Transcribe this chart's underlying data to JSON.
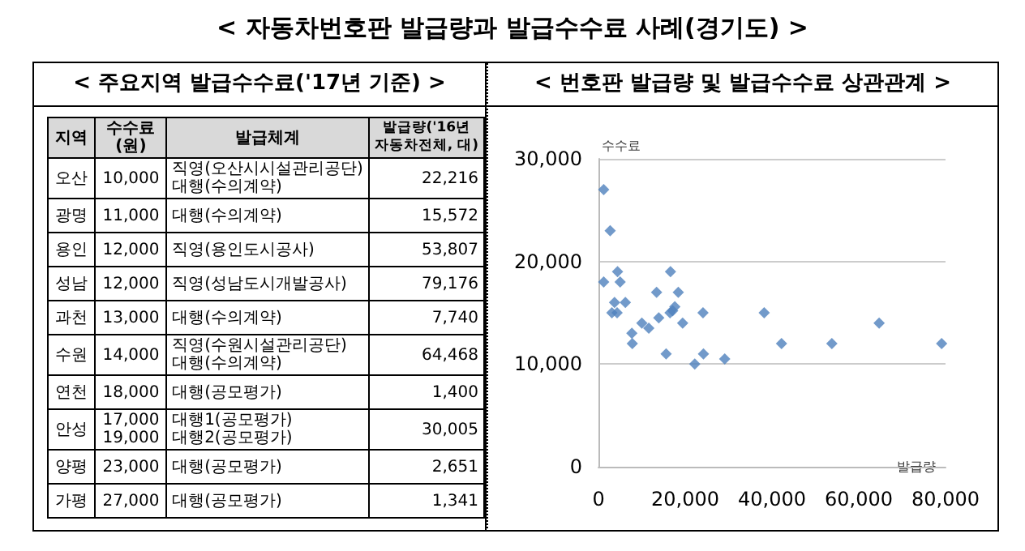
{
  "chart_data": [
    {
      "type": "other",
      "title": "< 자동차번호판 발급량과 발급수수료 사례(경기도) >",
      "subtitle": "< 주요지역 발급수수료('17년 기준) >",
      "annotations": [
        "지역",
        "수수료\n(원)",
        "발급체계",
        "발급량('16년\n자동차전체, 대)",
        "오산",
        "10,000",
        "직영(오산시시설관리공단)\n대행(수의계약)",
        "22,216",
        "광명",
        "11,000",
        "대행(수의계약)",
        "15,572",
        "용인",
        "12,000",
        "직영(용인도시공사)",
        "53,807",
        "성남",
        "12,000",
        "직영(성남도시개발공사)",
        "79,176",
        "과천",
        "13,000",
        "대행(수의계약)",
        "7,740",
        "수원",
        "14,000",
        "직영(수원시설관리공단)\n대행(수의계약)",
        "64,468",
        "연천",
        "18,000",
        "대행(공모평가)",
        "1,400",
        "안성",
        "17,000\n19,000",
        "대행1(공모평가)\n대행2(공모평가)",
        "30,005",
        "양평",
        "23,000",
        "대행(공모평가)",
        "2,651",
        "가평",
        "27,000",
        "대행(공모평가)",
        "1,341"
      ]
    },
    {
      "type": "scatter",
      "title": "< 번호판 발급량 및 발급수수료 상관관계 >",
      "xlabel": "발급량",
      "ylabel": "수수료",
      "marker": "diamond",
      "grid": "y",
      "color": "#4f81bd",
      "x": [
        1200,
        2700,
        1200,
        4400,
        5000,
        3700,
        3100,
        4300,
        6200,
        7700,
        7800,
        10000,
        11600,
        13400,
        13900,
        15600,
        16600,
        16500,
        17100,
        17600,
        18400,
        19400,
        22200,
        24100,
        24200,
        29100,
        38200,
        42200,
        53800,
        64700,
        79100
      ],
      "values": [
        27000,
        23000,
        18000,
        19000,
        18000,
        16000,
        15000,
        15000,
        16000,
        13000,
        12000,
        14000,
        13500,
        17000,
        14500,
        11000,
        19000,
        15000,
        15200,
        15600,
        17000,
        14000,
        10000,
        15000,
        11000,
        10500,
        15000,
        12000,
        12000,
        14000,
        12000
      ],
      "xlim": [
        0,
        80000
      ],
      "xticks": [
        0,
        {
          "value": 20000,
          "label": "20,000"
        },
        {
          "value": 40000,
          "label": "40,000"
        },
        {
          "value": 60000,
          "label": "60,000"
        },
        {
          "value": 80000,
          "label": "80,000"
        }
      ],
      "ylim": [
        0,
        30000
      ],
      "yticks": [
        0,
        {
          "value": 10000,
          "label": "10,000"
        },
        {
          "value": 20000,
          "label": "20,000"
        },
        {
          "value": 30000,
          "label": "30,000"
        }
      ]
    }
  ]
}
